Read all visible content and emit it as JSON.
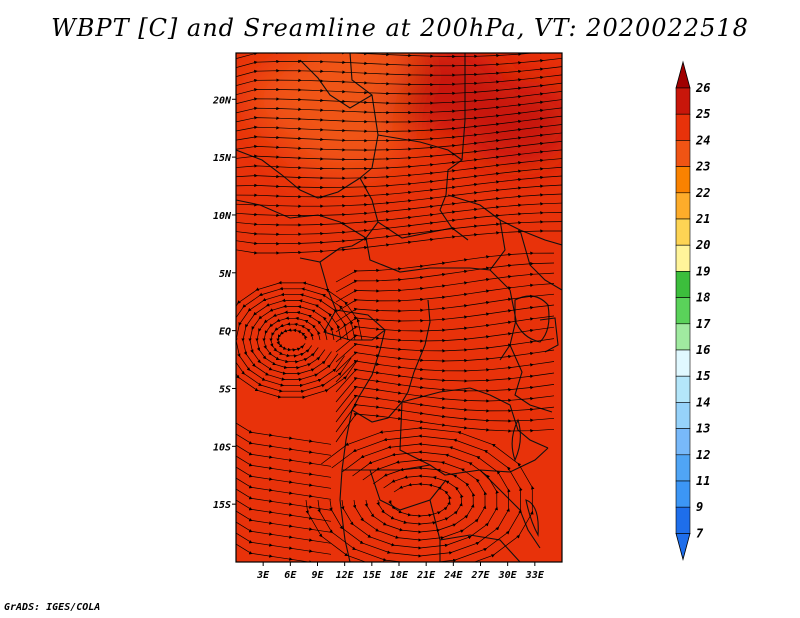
{
  "title": "WBPT [C] and Sreamline at 200hPa, VT: 2020022518",
  "footer": "GrADS: IGES/COLA",
  "map": {
    "lat_range": [
      -20,
      24
    ],
    "lon_range": [
      0,
      36
    ],
    "lat_labels": [
      {
        "lat": 20,
        "text": "20N"
      },
      {
        "lat": 15,
        "text": "15N"
      },
      {
        "lat": 10,
        "text": "10N"
      },
      {
        "lat": 5,
        "text": "5N"
      },
      {
        "lat": 0,
        "text": "EQ"
      },
      {
        "lat": -5,
        "text": "5S"
      },
      {
        "lat": -10,
        "text": "10S"
      },
      {
        "lat": -15,
        "text": "15S"
      }
    ],
    "lon_labels": [
      {
        "lon": 3,
        "text": "3E"
      },
      {
        "lon": 6,
        "text": "6E"
      },
      {
        "lon": 9,
        "text": "9E"
      },
      {
        "lon": 12,
        "text": "12E"
      },
      {
        "lon": 15,
        "text": "15E"
      },
      {
        "lon": 18,
        "text": "18E"
      },
      {
        "lon": 21,
        "text": "21E"
      },
      {
        "lon": 24,
        "text": "24E"
      },
      {
        "lon": 27,
        "text": "27E"
      },
      {
        "lon": 30,
        "text": "30E"
      },
      {
        "lon": 33,
        "text": "33E"
      }
    ],
    "base_color": "#e8320a",
    "shade_regions": [
      {
        "lat": 21,
        "lon": 23,
        "level": 25,
        "color": "#c8160a"
      },
      {
        "lat": 18,
        "lon": 31,
        "level": 25,
        "color": "#c8160a"
      },
      {
        "lat": 20,
        "lon": 8,
        "level": 23,
        "color": "#f05414"
      },
      {
        "lat": 17,
        "lon": 12,
        "level": 23,
        "color": "#f05414"
      },
      {
        "lat": 23,
        "lon": 13,
        "level": 23,
        "color": "#f05414"
      }
    ]
  },
  "colorbar": {
    "levels": [
      {
        "label": "26",
        "color": "#a00000"
      },
      {
        "label": "25",
        "color": "#c8160a"
      },
      {
        "label": "24",
        "color": "#e8320a"
      },
      {
        "label": "23",
        "color": "#f05414"
      },
      {
        "label": "22",
        "color": "#fa8200"
      },
      {
        "label": "21",
        "color": "#fdac2a"
      },
      {
        "label": "20",
        "color": "#fdd454"
      },
      {
        "label": "19",
        "color": "#fff49a"
      },
      {
        "label": "18",
        "color": "#3cbe3c"
      },
      {
        "label": "17",
        "color": "#5ad25a"
      },
      {
        "label": "16",
        "color": "#a0eaa0"
      },
      {
        "label": "15",
        "color": "#e0f8ff"
      },
      {
        "label": "14",
        "color": "#b4e6fa"
      },
      {
        "label": "13",
        "color": "#96d2fa"
      },
      {
        "label": "12",
        "color": "#78b9fa"
      },
      {
        "label": "11",
        "color": "#50a5f5"
      },
      {
        "label": "9",
        "color": "#3c96f5"
      },
      {
        "label": "7",
        "color": "#1e6eeb"
      }
    ],
    "below_color": "#1e6eeb"
  }
}
